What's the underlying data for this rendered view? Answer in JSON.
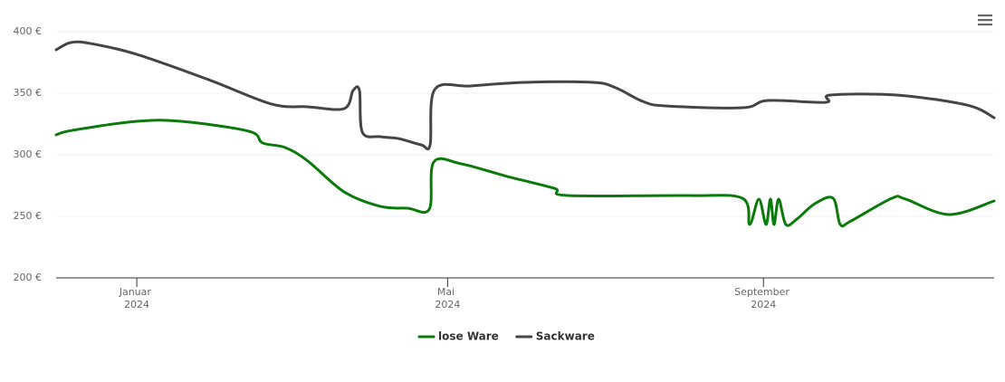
{
  "chart_data": {
    "type": "line",
    "x": [],
    "series": [
      {
        "name": "lose Ware",
        "color": "#0a7a0a",
        "x": [
          -31.4,
          -25,
          0,
          17.3,
          43.7,
          49,
          57.8,
          66.6,
          80.7,
          94.8,
          105.4,
          113.9,
          115.6,
          126.5,
          144.2,
          162.5,
          167.8,
          214.7,
          235.8,
          238.6,
          242.2,
          245,
          246.7,
          248.1,
          249.9,
          252.7,
          257,
          264,
          271.1,
          273.9,
          278.1,
          294,
          299.3,
          316.2,
          333.8
        ],
        "values": [
          316.2,
          319.9,
          327.2,
          327.2,
          319.1,
          309.6,
          305.9,
          294.9,
          269.9,
          258.1,
          256.6,
          255.9,
          294.1,
          292.6,
          282.4,
          272.8,
          266.9,
          266.9,
          264.7,
          243.4,
          264,
          243.4,
          264,
          243.4,
          264,
          243.4,
          247.8,
          260.3,
          264.7,
          243.4,
          246.3,
          264.7,
          264,
          251.5,
          262.5
        ]
      },
      {
        "name": "Sackware",
        "color": "#454545",
        "x": [
          -31.4,
          -25.7,
          -18,
          0,
          28,
          52.5,
          66.6,
          80.7,
          84.2,
          86.7,
          87.8,
          94.8,
          101.9,
          110.7,
          114.2,
          116,
          130,
          151.2,
          177.6,
          186.5,
          197,
          205.8,
          235.8,
          245.7,
          268.2,
          270,
          295.7,
          323.2,
          333.8
        ],
        "values": [
          385.3,
          391.2,
          390.4,
          381.6,
          361,
          341.2,
          339,
          337.5,
          352.2,
          352.2,
          318.4,
          314.7,
          313.2,
          308.1,
          308.1,
          353,
          355.9,
          358.8,
          358.8,
          354.4,
          343.4,
          339.7,
          338.2,
          344.1,
          342.6,
          348.5,
          348.5,
          340.4,
          330.1
        ]
      }
    ],
    "xlim": [
      -31.4,
      333.8
    ],
    "xticks": [
      {
        "value": 0,
        "label": "Januar 2024"
      },
      {
        "value": 121,
        "label": "Mai 2024"
      },
      {
        "value": 244,
        "label": "September 2024"
      }
    ],
    "ylim": [
      200,
      400
    ],
    "yticks": [
      {
        "value": 200,
        "label": "200 €"
      },
      {
        "value": 250,
        "label": "250 €"
      },
      {
        "value": 300,
        "label": "300 €"
      },
      {
        "value": 350,
        "label": "350 €"
      },
      {
        "value": 400,
        "label": "400 €"
      }
    ],
    "grid": true,
    "legend": "bottom"
  }
}
